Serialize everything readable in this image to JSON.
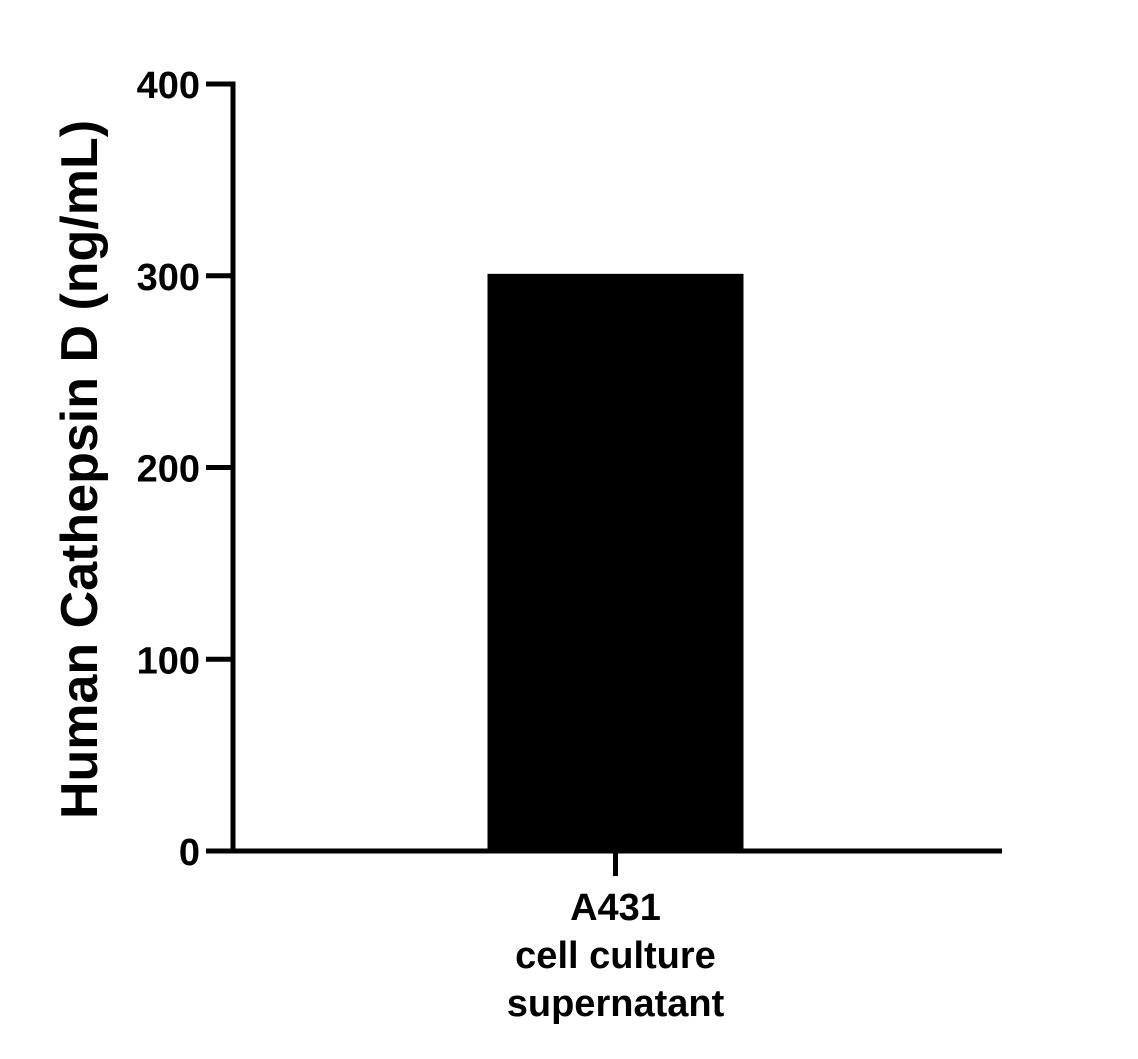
{
  "chart_data": {
    "type": "bar",
    "title": "",
    "xlabel": "",
    "ylabel": "Human Cathepsin D (ng/mL)",
    "ylim": [
      0,
      400
    ],
    "yticks": [
      0,
      100,
      200,
      300,
      400
    ],
    "ytick_labels": [
      "0",
      "100",
      "200",
      "300",
      "400"
    ],
    "categories": [
      "A431 cell culture supernatant"
    ],
    "category_label_lines": [
      [
        "A431",
        "cell culture",
        "supernatant"
      ]
    ],
    "values": [
      301
    ],
    "bar_color": "#000000",
    "grid": false,
    "legend": "none"
  }
}
